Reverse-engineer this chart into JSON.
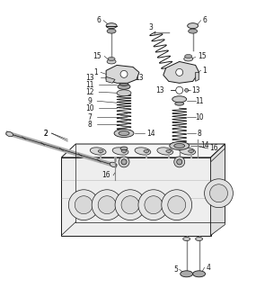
{
  "bg_color": "#ffffff",
  "line_color": "#1a1a1a",
  "gray1": "#888888",
  "gray2": "#aaaaaa",
  "gray3": "#cccccc",
  "gray4": "#555555",
  "figsize": [
    2.85,
    3.2
  ],
  "dpi": 100,
  "xlim": [
    0,
    285
  ],
  "ylim": [
    0,
    320
  ]
}
